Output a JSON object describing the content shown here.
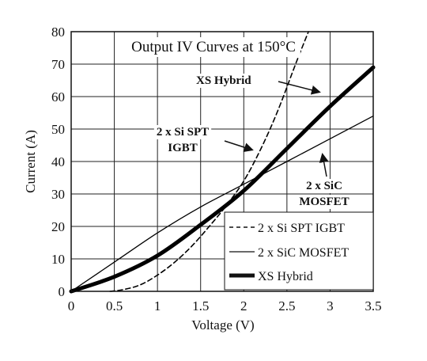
{
  "chart_data": {
    "type": "line",
    "title": "Output IV Curves at 150°C",
    "xlabel": "Voltage (V)",
    "ylabel": "Current (A)",
    "xlim": [
      0,
      3.5
    ],
    "ylim": [
      0,
      80
    ],
    "xticks": [
      "0",
      "0.5",
      "1",
      "1.5",
      "2",
      "2.5",
      "3",
      "3.5"
    ],
    "yticks": [
      "0",
      "10",
      "20",
      "30",
      "40",
      "50",
      "60",
      "70",
      "80"
    ],
    "grid": true,
    "legend_position": "bottom-right",
    "series": [
      {
        "name": "2 x Si SPT IGBT",
        "style": "dashed",
        "x": [
          0.45,
          0.6,
          0.8,
          1.0,
          1.2,
          1.4,
          1.6,
          1.8,
          2.0,
          2.2,
          2.4,
          2.6,
          2.75
        ],
        "y": [
          0,
          0.5,
          2,
          5,
          9,
          14,
          20,
          26.5,
          34,
          44,
          56,
          70,
          80
        ]
      },
      {
        "name": "2 x SiC MOSFET",
        "style": "thin",
        "x": [
          0,
          0.5,
          1.0,
          1.5,
          2.0,
          2.5,
          3.0,
          3.5
        ],
        "y": [
          0,
          9,
          18,
          26,
          33,
          40,
          47,
          54
        ]
      },
      {
        "name": "XS Hybrid",
        "style": "thick",
        "x": [
          0,
          0.5,
          1.0,
          1.5,
          2.0,
          2.5,
          3.0,
          3.5
        ],
        "y": [
          0,
          4.5,
          11,
          20.5,
          31,
          44,
          57,
          69
        ]
      }
    ],
    "annotations": [
      {
        "text": "XS Hybrid",
        "points_to": "XS Hybrid"
      },
      {
        "text_lines": [
          "2 x Si SPT",
          "IGBT"
        ],
        "points_to": "2 x Si SPT IGBT"
      },
      {
        "text_lines": [
          "2 x SiC",
          "MOSFET"
        ],
        "points_to": "2 x SiC MOSFET"
      }
    ]
  }
}
